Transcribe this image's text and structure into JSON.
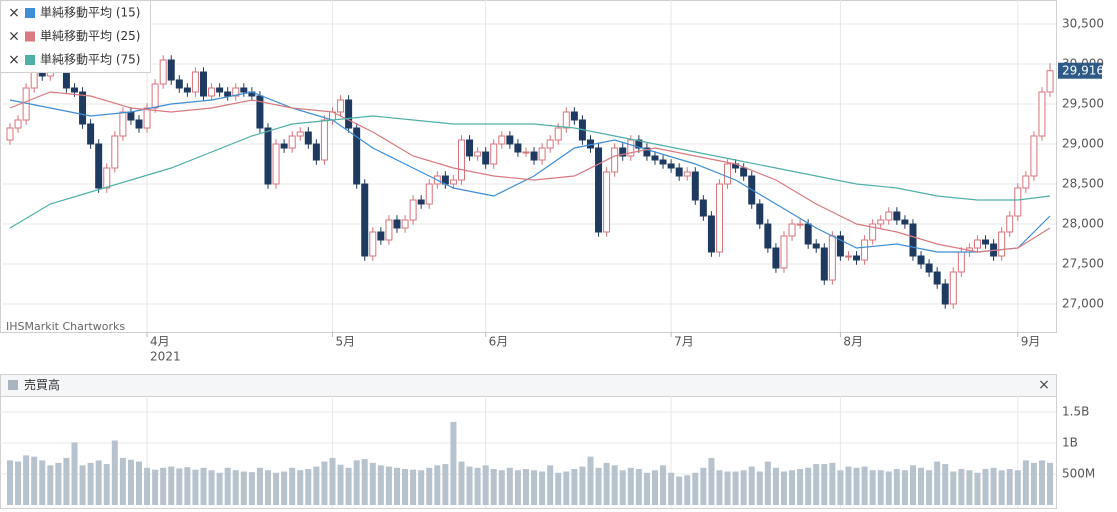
{
  "chart_data": [
    {
      "type": "candlestick",
      "watermark": "IHSMarkit Chartworks",
      "year_label": "2021",
      "xlim": [
        -1.24,
        129.74
      ],
      "xticks": [
        {
          "value": 17,
          "label": "4月"
        },
        {
          "value": 40,
          "label": "5月"
        },
        {
          "value": 59,
          "label": "6月"
        },
        {
          "value": 82,
          "label": "7月"
        },
        {
          "value": 103,
          "label": "8月"
        },
        {
          "value": 125,
          "label": "9月"
        }
      ],
      "ylim": [
        26650,
        30800
      ],
      "yticks": [
        {
          "value": 27000,
          "label": "27,000"
        },
        {
          "value": 27500,
          "label": "27,500"
        },
        {
          "value": 28000,
          "label": "28,000"
        },
        {
          "value": 28500,
          "label": "28,500"
        },
        {
          "value": 29000,
          "label": "29,000"
        },
        {
          "value": 29500,
          "label": "29,500"
        },
        {
          "value": 30000,
          "label": "30,000"
        },
        {
          "value": 30500,
          "label": "30,500"
        }
      ],
      "grid": true,
      "up_color": "#d9737a",
      "down_color": "#1f3a60",
      "last_close": {
        "value": 29916,
        "label": "29,916"
      },
      "ohlc": [
        [
          29050,
          29260,
          28990,
          29200
        ],
        [
          29200,
          29360,
          29140,
          29300
        ],
        [
          29300,
          29760,
          29240,
          29700
        ],
        [
          29700,
          29960,
          29640,
          29900
        ],
        [
          29900,
          29960,
          29790,
          29850
        ],
        [
          29850,
          30010,
          29790,
          29950
        ],
        [
          29950,
          30010,
          29890,
          29950
        ],
        [
          29950,
          30010,
          29640,
          29700
        ],
        [
          29700,
          29760,
          29590,
          29650
        ],
        [
          29650,
          29710,
          29190,
          29250
        ],
        [
          29250,
          29310,
          28940,
          29000
        ],
        [
          29000,
          29060,
          28390,
          28450
        ],
        [
          28450,
          28760,
          28390,
          28700
        ],
        [
          28700,
          29160,
          28640,
          29100
        ],
        [
          29100,
          29460,
          29040,
          29400
        ],
        [
          29400,
          29460,
          29240,
          29300
        ],
        [
          29300,
          29360,
          29140,
          29200
        ],
        [
          29200,
          29510,
          29140,
          29450
        ],
        [
          29450,
          29810,
          29390,
          29750
        ],
        [
          29750,
          30110,
          29690,
          30050
        ],
        [
          30050,
          30110,
          29740,
          29800
        ],
        [
          29800,
          29860,
          29640,
          29700
        ],
        [
          29700,
          29760,
          29590,
          29650
        ],
        [
          29650,
          29960,
          29590,
          29900
        ],
        [
          29900,
          29960,
          29540,
          29600
        ],
        [
          29600,
          29760,
          29540,
          29700
        ],
        [
          29700,
          29760,
          29590,
          29650
        ],
        [
          29650,
          29710,
          29540,
          29600
        ],
        [
          29600,
          29760,
          29540,
          29700
        ],
        [
          29700,
          29760,
          29590,
          29650
        ],
        [
          29650,
          29710,
          29540,
          29600
        ],
        [
          29600,
          29660,
          29140,
          29200
        ],
        [
          29200,
          29260,
          28440,
          28500
        ],
        [
          28500,
          29060,
          28440,
          29000
        ],
        [
          29000,
          29060,
          28890,
          28950
        ],
        [
          28950,
          29160,
          28890,
          29100
        ],
        [
          29100,
          29210,
          29040,
          29150
        ],
        [
          29150,
          29210,
          28940,
          29000
        ],
        [
          29000,
          29060,
          28740,
          28800
        ],
        [
          28800,
          29360,
          28740,
          29300
        ],
        [
          29300,
          29460,
          29240,
          29400
        ],
        [
          29400,
          29610,
          29340,
          29550
        ],
        [
          29550,
          29610,
          29140,
          29200
        ],
        [
          29200,
          29260,
          28440,
          28500
        ],
        [
          28500,
          28560,
          27540,
          27600
        ],
        [
          27600,
          27960,
          27540,
          27900
        ],
        [
          27900,
          27960,
          27740,
          27800
        ],
        [
          27800,
          28110,
          27740,
          28050
        ],
        [
          28050,
          28110,
          27890,
          27950
        ],
        [
          27950,
          28110,
          27890,
          28050
        ],
        [
          28050,
          28360,
          27990,
          28300
        ],
        [
          28300,
          28360,
          28190,
          28250
        ],
        [
          28250,
          28560,
          28190,
          28500
        ],
        [
          28500,
          28660,
          28440,
          28600
        ],
        [
          28600,
          28660,
          28440,
          28500
        ],
        [
          28500,
          28610,
          28440,
          28550
        ],
        [
          28550,
          29110,
          28490,
          29050
        ],
        [
          29050,
          29110,
          28790,
          28850
        ],
        [
          28850,
          28960,
          28790,
          28900
        ],
        [
          28900,
          28960,
          28690,
          28750
        ],
        [
          28750,
          29060,
          28690,
          29000
        ],
        [
          29000,
          29160,
          28940,
          29100
        ],
        [
          29100,
          29160,
          28940,
          29000
        ],
        [
          29000,
          29060,
          28840,
          28900
        ],
        [
          28900,
          28960,
          28840,
          28900
        ],
        [
          28900,
          28960,
          28740,
          28800
        ],
        [
          28800,
          29010,
          28740,
          28950
        ],
        [
          28950,
          29110,
          28890,
          29050
        ],
        [
          29050,
          29260,
          28990,
          29200
        ],
        [
          29200,
          29460,
          29140,
          29400
        ],
        [
          29400,
          29460,
          29240,
          29300
        ],
        [
          29300,
          29360,
          28990,
          29050
        ],
        [
          29050,
          29110,
          28890,
          28950
        ],
        [
          28950,
          29010,
          27840,
          27900
        ],
        [
          27900,
          28710,
          27840,
          28650
        ],
        [
          28650,
          29010,
          28590,
          28950
        ],
        [
          28950,
          29010,
          28790,
          28850
        ],
        [
          28850,
          29110,
          28790,
          29050
        ],
        [
          29050,
          29110,
          28890,
          28950
        ],
        [
          28950,
          29010,
          28790,
          28850
        ],
        [
          28850,
          28910,
          28740,
          28800
        ],
        [
          28800,
          28860,
          28690,
          28750
        ],
        [
          28750,
          28810,
          28640,
          28700
        ],
        [
          28700,
          28760,
          28540,
          28600
        ],
        [
          28600,
          28710,
          28540,
          28650
        ],
        [
          28650,
          28710,
          28240,
          28300
        ],
        [
          28300,
          28360,
          28040,
          28100
        ],
        [
          28100,
          28160,
          27590,
          27650
        ],
        [
          27650,
          28560,
          27590,
          28500
        ],
        [
          28500,
          28810,
          28440,
          28750
        ],
        [
          28750,
          28810,
          28640,
          28700
        ],
        [
          28700,
          28760,
          28540,
          28600
        ],
        [
          28600,
          28660,
          28190,
          28250
        ],
        [
          28250,
          28310,
          27940,
          28000
        ],
        [
          28000,
          28060,
          27640,
          27700
        ],
        [
          27700,
          27760,
          27390,
          27450
        ],
        [
          27450,
          27910,
          27390,
          27850
        ],
        [
          27850,
          28060,
          27790,
          28000
        ],
        [
          28000,
          28060,
          27940,
          28000
        ],
        [
          28000,
          28060,
          27690,
          27750
        ],
        [
          27750,
          27810,
          27640,
          27700
        ],
        [
          27700,
          27760,
          27240,
          27300
        ],
        [
          27300,
          27910,
          27240,
          27850
        ],
        [
          27850,
          27910,
          27540,
          27600
        ],
        [
          27600,
          27660,
          27540,
          27600
        ],
        [
          27600,
          27660,
          27490,
          27550
        ],
        [
          27550,
          27860,
          27490,
          27800
        ],
        [
          27800,
          28060,
          27740,
          28000
        ],
        [
          28000,
          28110,
          27940,
          28050
        ],
        [
          28050,
          28210,
          27990,
          28150
        ],
        [
          28150,
          28210,
          27990,
          28050
        ],
        [
          28050,
          28110,
          27940,
          28000
        ],
        [
          28000,
          28060,
          27540,
          27600
        ],
        [
          27600,
          27660,
          27440,
          27500
        ],
        [
          27500,
          27560,
          27340,
          27400
        ],
        [
          27400,
          27460,
          27190,
          27250
        ],
        [
          27250,
          27310,
          26940,
          27000
        ],
        [
          27000,
          27460,
          26940,
          27400
        ],
        [
          27400,
          27710,
          27340,
          27650
        ],
        [
          27650,
          27760,
          27590,
          27700
        ],
        [
          27700,
          27860,
          27640,
          27800
        ],
        [
          27800,
          27860,
          27690,
          27750
        ],
        [
          27750,
          27810,
          27540,
          27600
        ],
        [
          27600,
          27960,
          27540,
          27900
        ],
        [
          27900,
          28160,
          27840,
          28100
        ],
        [
          28100,
          28510,
          28040,
          28450
        ],
        [
          28450,
          28660,
          28390,
          28600
        ],
        [
          28600,
          29160,
          28540,
          29100
        ],
        [
          29100,
          29710,
          29040,
          29650
        ],
        [
          29650,
          30010,
          29590,
          29916
        ]
      ],
      "series": [
        {
          "name": "単純移動平均 (15)",
          "color": "#3d8ed4",
          "x": [
            0,
            5,
            10,
            15,
            20,
            25,
            30,
            35,
            40,
            45,
            50,
            55,
            60,
            65,
            70,
            75,
            80,
            85,
            90,
            95,
            100,
            105,
            110,
            115,
            120,
            125,
            129
          ],
          "values": [
            29550,
            29450,
            29350,
            29400,
            29500,
            29550,
            29650,
            29450,
            29300,
            28950,
            28700,
            28450,
            28350,
            28600,
            28950,
            29050,
            28900,
            28750,
            28550,
            28250,
            27950,
            27700,
            27750,
            27650,
            27650,
            27700,
            28100
          ]
        },
        {
          "name": "単純移動平均 (25)",
          "color": "#d97a80",
          "x": [
            0,
            5,
            10,
            15,
            20,
            25,
            30,
            35,
            40,
            45,
            50,
            55,
            60,
            65,
            70,
            75,
            80,
            85,
            90,
            95,
            100,
            105,
            110,
            115,
            120,
            125,
            129
          ],
          "values": [
            29450,
            29650,
            29600,
            29450,
            29400,
            29450,
            29550,
            29450,
            29400,
            29150,
            28850,
            28700,
            28600,
            28550,
            28600,
            28850,
            28950,
            28850,
            28750,
            28550,
            28250,
            28000,
            27900,
            27750,
            27650,
            27700,
            27950
          ]
        },
        {
          "name": "単純移動平均 (75)",
          "color": "#4fb0a6",
          "x": [
            0,
            5,
            10,
            15,
            20,
            25,
            30,
            35,
            40,
            45,
            50,
            55,
            60,
            65,
            70,
            75,
            80,
            85,
            90,
            95,
            100,
            105,
            110,
            115,
            120,
            125,
            129
          ],
          "values": [
            27950,
            28250,
            28400,
            28550,
            28700,
            28900,
            29100,
            29250,
            29300,
            29350,
            29300,
            29250,
            29250,
            29250,
            29200,
            29100,
            29000,
            28900,
            28800,
            28700,
            28600,
            28500,
            28450,
            28350,
            28300,
            28300,
            28350
          ]
        }
      ]
    },
    {
      "type": "bar",
      "title": "売買高",
      "color": "#b7c2cf",
      "xlim": [
        -1.24,
        129.74
      ],
      "ylim": [
        0,
        1758
      ],
      "yticks": [
        {
          "value": 500,
          "label": "500M"
        },
        {
          "value": 1000,
          "label": "1B"
        },
        {
          "value": 1500,
          "label": "1.5B"
        }
      ],
      "grid": true,
      "values": [
        720,
        700,
        800,
        780,
        720,
        640,
        680,
        760,
        1010,
        640,
        680,
        720,
        660,
        1040,
        760,
        730,
        700,
        600,
        570,
        600,
        620,
        590,
        610,
        570,
        600,
        560,
        520,
        600,
        560,
        540,
        530,
        600,
        560,
        520,
        540,
        600,
        560,
        580,
        620,
        700,
        760,
        650,
        600,
        720,
        740,
        680,
        640,
        620,
        600,
        580,
        570,
        560,
        600,
        640,
        660,
        1340,
        700,
        620,
        600,
        640,
        580,
        560,
        600,
        560,
        580,
        560,
        540,
        640,
        520,
        540,
        580,
        620,
        780,
        600,
        680,
        640,
        560,
        600,
        580,
        520,
        560,
        640,
        520,
        460,
        480,
        520,
        600,
        760,
        560,
        540,
        540,
        560,
        620,
        540,
        700,
        600,
        540,
        560,
        580,
        600,
        660,
        660,
        680,
        560,
        620,
        600,
        620,
        560,
        560,
        540,
        580,
        560,
        640,
        600,
        560,
        700,
        660,
        540,
        580,
        560,
        520,
        580,
        600,
        560,
        580,
        560,
        720,
        680,
        720,
        680
      ]
    }
  ]
}
